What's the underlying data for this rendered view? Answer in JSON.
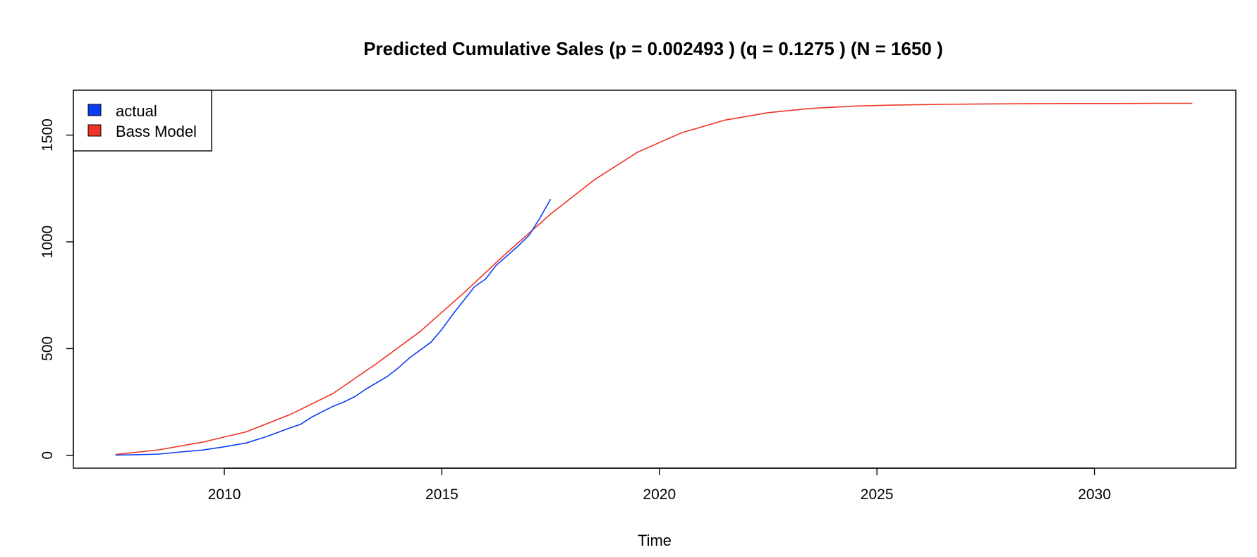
{
  "chart_data": {
    "type": "line",
    "title": "Predicted Cumulative Sales (p =  0.002493 )  (q =  0.1275 )  (N =  1650 )",
    "xlabel": "Time",
    "ylabel": "",
    "xlim": [
      2006.53,
      2033.25
    ],
    "ylim": [
      -60,
      1710
    ],
    "xticks": [
      2010,
      2015,
      2020,
      2025,
      2030
    ],
    "yticks": [
      0,
      500,
      1000,
      1500
    ],
    "grid": false,
    "legend": "top-left",
    "bass_params": {
      "p": 0.002493,
      "q": 0.1275,
      "N": 1650
    },
    "series": [
      {
        "name": "actual",
        "color": "#0b3ff5",
        "x": [
          2007.5,
          2008.0,
          2008.5,
          2009.0,
          2009.5,
          2010.0,
          2010.5,
          2011.0,
          2011.5,
          2011.75,
          2012.0,
          2012.5,
          2012.75,
          2013.0,
          2013.25,
          2013.75,
          2014.0,
          2014.25,
          2014.75,
          2015.0,
          2015.25,
          2015.75,
          2016.0,
          2016.25,
          2016.75,
          2017.0,
          2017.25,
          2017.5
        ],
        "values": [
          1,
          3,
          6,
          16,
          25,
          40,
          58,
          90,
          128,
          145,
          178,
          230,
          250,
          275,
          310,
          370,
          410,
          455,
          530,
          590,
          660,
          790,
          825,
          890,
          980,
          1030,
          1110,
          1200
        ]
      },
      {
        "name": "Bass Model",
        "color": "#ee3424",
        "x": [
          2007.5,
          2008.5,
          2009.5,
          2010.5,
          2011.5,
          2012.5,
          2013.5,
          2014.5,
          2015.5,
          2016.5,
          2017.5,
          2018.5,
          2019.5,
          2020.5,
          2021.5,
          2022.5,
          2023.5,
          2024.5,
          2025.5,
          2026.5,
          2027.5,
          2028.5,
          2029.5,
          2030.5,
          2031.5,
          2032.25
        ],
        "values": [
          4,
          26,
          62,
          110,
          190,
          290,
          430,
          580,
          760,
          950,
          1130,
          1290,
          1420,
          1510,
          1570,
          1605,
          1625,
          1636,
          1641,
          1644,
          1646,
          1647,
          1648,
          1648,
          1649,
          1649
        ]
      }
    ]
  }
}
